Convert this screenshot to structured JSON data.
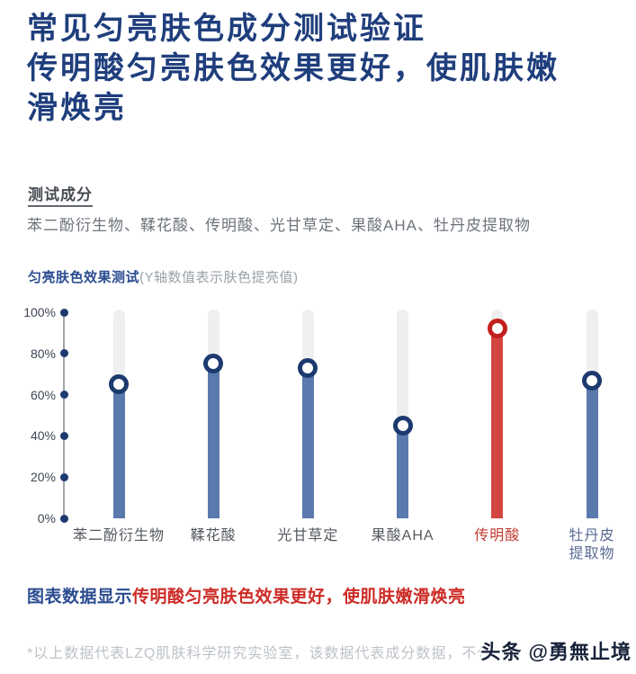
{
  "header": {
    "title_line1": "常见匀亮肤色成分测试验证",
    "title_line2": "传明酸匀亮肤色效果更好，使肌肤嫩滑焕亮"
  },
  "ingredients": {
    "heading": "测试成分",
    "list": "苯二酚衍生物、鞣花酸、传明酸、光甘草定、果酸AHA、牡丹皮提取物"
  },
  "chart_title": {
    "bold": "匀亮肤色效果测试",
    "note": "(Y轴数值表示肤色提亮值)"
  },
  "chart_data": {
    "type": "bar",
    "title": "匀亮肤色效果测试",
    "subtitle": "Y轴数值表示肤色提亮值",
    "categories": [
      "苯二酚衍生物",
      "鞣花酸",
      "光甘草定",
      "果酸AHA",
      "传明酸",
      "牡丹皮提取物"
    ],
    "values": [
      65,
      75,
      73,
      45,
      92,
      67
    ],
    "x_tick_labels": [
      "苯二酚衍生物",
      "鞣花酸",
      "光甘草定",
      "果酸AHA",
      "传明酸",
      "牡丹皮\n提取物"
    ],
    "label_colors": [
      "#54585f",
      "#54585f",
      "#54585f",
      "#54585f",
      "#c23a30",
      "#5a6b94"
    ],
    "highlight_index": 4,
    "highlight_category": "传明酸",
    "ylabel": "肤色提亮值",
    "ylim": [
      0,
      100
    ],
    "yticks": [
      "0%",
      "20%",
      "40%",
      "60%",
      "80%",
      "100%"
    ],
    "grid": false,
    "legend": "none",
    "colors": {
      "bar": "#5a7aad",
      "bar_highlight": "#d24540",
      "marker_ring": "#1c3a6e",
      "marker_ring_highlight": "#c2201d",
      "track": "#efefef",
      "axis_dot": "#1c3a6e",
      "axis_line": "#a3a5a9"
    }
  },
  "summary": {
    "prefix": "图表数据显示",
    "highlight": "传明酸匀亮肤色效果更好，使肌肤嫩滑焕亮"
  },
  "footnote": "*以上数据代表LZQ肌肤科学研究实验室，该数据代表成分数据，不代",
  "watermark": "头条 @勇無止境"
}
